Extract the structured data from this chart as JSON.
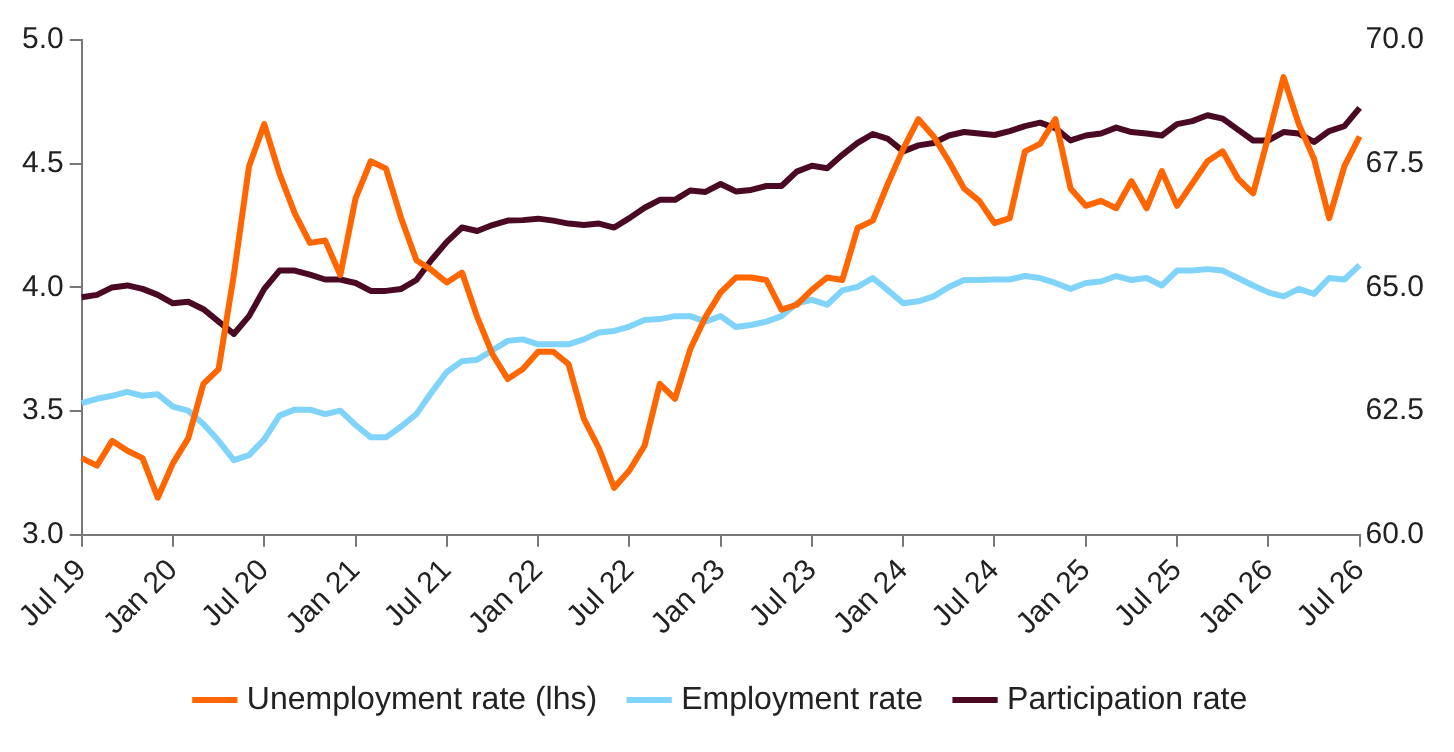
{
  "chart_data": {
    "type": "line",
    "categories": [
      "Jul 19",
      null,
      null,
      null,
      null,
      null,
      "Jan 20",
      null,
      null,
      null,
      null,
      null,
      "Jul 20",
      null,
      null,
      null,
      null,
      null,
      "Jan 21",
      null,
      null,
      null,
      null,
      null,
      "Jul 21",
      null,
      null,
      null,
      null,
      null,
      "Jan 22",
      null,
      null,
      null,
      null,
      null,
      "Jul 22",
      null,
      null,
      null,
      null,
      null,
      "Jan 23",
      null,
      null,
      null,
      null,
      null,
      "Jul 23",
      null,
      null,
      null,
      null,
      null,
      "Jan 24",
      null,
      null,
      null,
      null,
      null,
      "Jul 24",
      null,
      null,
      null,
      null,
      null,
      "Jan 25",
      null,
      null,
      null,
      null,
      null,
      "Jul 25",
      null,
      null,
      null,
      null,
      null,
      "Jan 26",
      null,
      null,
      null,
      null,
      null,
      "Jul 26"
    ],
    "series": [
      {
        "name": "Unemployment rate (lhs)",
        "color": "#ff6600",
        "values": [
          3.31,
          3.28,
          3.38,
          3.34,
          3.31,
          3.15,
          3.29,
          3.39,
          3.61,
          3.67,
          4.05,
          4.49,
          4.66,
          4.46,
          4.3,
          4.18,
          4.19,
          4.05,
          4.36,
          4.51,
          4.48,
          4.28,
          4.11,
          4.07,
          4.02,
          4.06,
          3.88,
          3.73,
          3.63,
          3.67,
          3.74,
          3.74,
          3.69,
          3.47,
          3.35,
          3.19,
          3.26,
          3.36,
          3.61,
          3.55,
          3.75,
          3.88,
          3.98,
          4.04,
          4.04,
          4.03,
          3.91,
          3.93,
          3.99,
          4.04,
          4.03,
          4.24,
          4.27,
          4.42,
          4.56,
          4.68,
          4.61,
          4.51,
          4.4,
          4.35,
          4.26,
          4.28,
          4.55,
          4.58,
          4.68,
          4.4,
          4.33,
          4.35,
          4.32,
          4.43,
          4.32,
          4.47,
          4.33,
          4.42,
          4.51,
          4.55,
          4.44,
          4.38,
          4.61,
          4.85,
          4.66,
          4.52,
          4.28,
          4.49,
          4.61
        ]
      },
      {
        "name": "Employment rate",
        "color": "#80d4fa",
        "axis": "y2",
        "values": [
          62.66,
          62.75,
          62.81,
          62.89,
          62.81,
          62.84,
          62.59,
          62.51,
          62.24,
          61.9,
          61.51,
          61.61,
          61.93,
          62.41,
          62.53,
          62.53,
          62.44,
          62.51,
          62.22,
          61.97,
          61.97,
          62.19,
          62.44,
          62.88,
          63.29,
          63.51,
          63.54,
          63.73,
          63.92,
          63.95,
          63.85,
          63.85,
          63.85,
          63.95,
          64.09,
          64.12,
          64.21,
          64.34,
          64.36,
          64.42,
          64.42,
          64.31,
          64.42,
          64.2,
          64.24,
          64.31,
          64.42,
          64.68,
          64.75,
          64.65,
          64.94,
          65.01,
          65.19,
          64.94,
          64.68,
          64.72,
          64.82,
          65.01,
          65.15,
          65.15,
          65.16,
          65.16,
          65.23,
          65.19,
          65.09,
          64.97,
          65.09,
          65.12,
          65.23,
          65.15,
          65.19,
          65.04,
          65.34,
          65.34,
          65.37,
          65.34,
          65.19,
          65.04,
          64.9,
          64.82,
          64.97,
          64.87,
          65.19,
          65.16,
          65.45
        ]
      },
      {
        "name": "Participation rate",
        "color": "#4a0a24",
        "axis": "y2",
        "values": [
          64.8,
          64.85,
          65.0,
          65.04,
          64.97,
          64.85,
          64.68,
          64.71,
          64.56,
          64.31,
          64.06,
          64.42,
          64.97,
          65.34,
          65.34,
          65.26,
          65.16,
          65.16,
          65.09,
          64.93,
          64.93,
          64.97,
          65.15,
          65.56,
          65.92,
          66.21,
          66.14,
          66.26,
          66.35,
          66.36,
          66.39,
          66.35,
          66.29,
          66.26,
          66.29,
          66.21,
          66.4,
          66.61,
          66.77,
          66.77,
          66.96,
          66.93,
          67.09,
          66.94,
          66.97,
          67.05,
          67.05,
          67.34,
          67.46,
          67.41,
          67.68,
          67.92,
          68.1,
          68.0,
          67.75,
          67.87,
          67.92,
          68.07,
          68.14,
          68.11,
          68.08,
          68.16,
          68.26,
          68.33,
          68.22,
          67.97,
          68.07,
          68.11,
          68.23,
          68.14,
          68.11,
          68.07,
          68.3,
          68.36,
          68.48,
          68.41,
          68.19,
          67.97,
          67.97,
          68.14,
          68.11,
          67.94,
          68.16,
          68.26,
          68.63
        ]
      }
    ],
    "ylim": [
      3.0,
      5.0
    ],
    "yticks": [
      {
        "value": 3.0,
        "label": "3.0"
      },
      {
        "value": 3.5,
        "label": "3.5"
      },
      {
        "value": 4.0,
        "label": "4.0"
      },
      {
        "value": 4.5,
        "label": "4.5"
      },
      {
        "value": 5.0,
        "label": "5.0"
      }
    ],
    "y2lim": [
      60,
      70
    ],
    "y2ticks": [
      {
        "value": 60,
        "label": "60.0"
      },
      {
        "value": 62.5,
        "label": "62.5"
      },
      {
        "value": 65,
        "label": "65.0"
      },
      {
        "value": 67.5,
        "label": "67.5"
      },
      {
        "value": 70,
        "label": "70.0"
      }
    ],
    "legend": "bottom",
    "grid": false,
    "marker": "none",
    "line_style": "solid"
  }
}
